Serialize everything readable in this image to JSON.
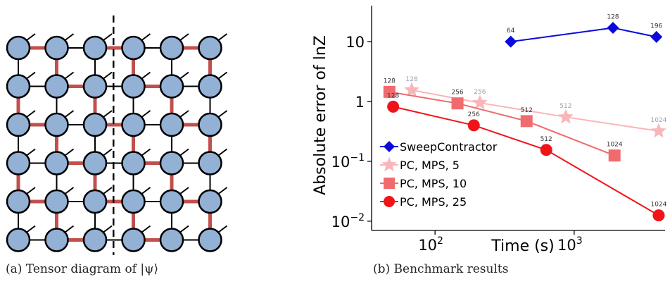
{
  "captions": {
    "a": "(a) Tensor diagram of |ψ⟩",
    "b": "(b) Benchmark results"
  },
  "diagram": {
    "rows": 6,
    "cols": 6,
    "node_color": "#93B0D5",
    "bond_color": "#C0504D",
    "edge_color": "#000000",
    "cut_after_column": 3
  },
  "chart_data": {
    "type": "line",
    "xlabel": "Time (s)",
    "ylabel": "Absolute error of lnZ",
    "xscale": "log",
    "yscale": "log",
    "xlim": [
      35,
      4500
    ],
    "ylim": [
      0.007,
      40
    ],
    "xticks": [
      {
        "value": 100,
        "base": "10",
        "exp": "2"
      },
      {
        "value": 1000,
        "base": "10",
        "exp": "3"
      }
    ],
    "yticks": [
      {
        "value": 10,
        "label": "10"
      },
      {
        "value": 1,
        "label": "1"
      },
      {
        "value": 0.1,
        "base": "10",
        "exp": "−1"
      },
      {
        "value": 0.01,
        "base": "10",
        "exp": "−2"
      }
    ],
    "legend": "bottom-left",
    "series": [
      {
        "name": "SweepContractor",
        "color": "#0A0ADB",
        "marker": "diamond",
        "label_color": "#333333",
        "points": [
          {
            "x": 350,
            "y": 10.0,
            "label": "64"
          },
          {
            "x": 1900,
            "y": 17.0,
            "label": "128"
          },
          {
            "x": 3900,
            "y": 12.0,
            "label": "196"
          }
        ]
      },
      {
        "name": "PC, MPS, 5",
        "color": "#F9B6B8",
        "marker": "star",
        "label_color": "#9AA0B8",
        "points": [
          {
            "x": 68,
            "y": 1.55,
            "label": "128"
          },
          {
            "x": 210,
            "y": 0.95,
            "label": "256"
          },
          {
            "x": 870,
            "y": 0.55,
            "label": "512"
          },
          {
            "x": 4050,
            "y": 0.32,
            "label": "1024"
          }
        ]
      },
      {
        "name": "PC, MPS, 10",
        "color": "#F06B6E",
        "marker": "square",
        "label_color": "#333333",
        "points": [
          {
            "x": 47,
            "y": 1.45,
            "label": "128"
          },
          {
            "x": 145,
            "y": 0.93,
            "label": "256"
          },
          {
            "x": 455,
            "y": 0.47,
            "label": "512"
          },
          {
            "x": 1950,
            "y": 0.125,
            "label": "1024"
          }
        ]
      },
      {
        "name": "PC, MPS, 25",
        "color": "#F01418",
        "marker": "circle",
        "label_color": "#333333",
        "points": [
          {
            "x": 50,
            "y": 0.82,
            "label": "128"
          },
          {
            "x": 190,
            "y": 0.4,
            "label": "256"
          },
          {
            "x": 630,
            "y": 0.155,
            "label": "512"
          },
          {
            "x": 4050,
            "y": 0.0125,
            "label": "1024"
          }
        ]
      }
    ]
  }
}
